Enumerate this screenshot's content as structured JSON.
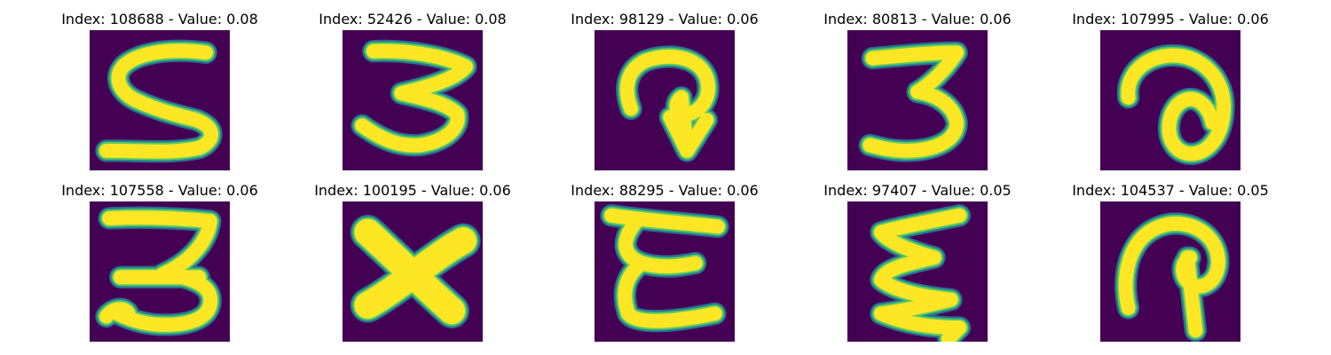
{
  "colors": {
    "background": "#440154",
    "edge_dark": "#31688e",
    "edge_mid": "#21918c",
    "edge_light": "#5ec962",
    "stroke": "#fde725"
  },
  "tiles": [
    {
      "title": "Index: 108688 - Value: 0.08",
      "glyph": "5"
    },
    {
      "title": "Index: 52426 - Value: 0.08",
      "glyph": "3"
    },
    {
      "title": "Index: 98129 - Value: 0.06",
      "glyph": "hook-arrow"
    },
    {
      "title": "Index: 80813 - Value: 0.06",
      "glyph": "3"
    },
    {
      "title": "Index: 107995 - Value: 0.06",
      "glyph": "loop-a"
    },
    {
      "title": "Index: 107558 - Value: 0.06",
      "glyph": "3"
    },
    {
      "title": "Index: 100195 - Value: 0.06",
      "glyph": "X"
    },
    {
      "title": "Index: 88295 - Value: 0.06",
      "glyph": "E"
    },
    {
      "title": "Index: 97407 - Value: 0.05",
      "glyph": "zigzag"
    },
    {
      "title": "Index: 104537 - Value: 0.05",
      "glyph": "hook-P"
    }
  ]
}
